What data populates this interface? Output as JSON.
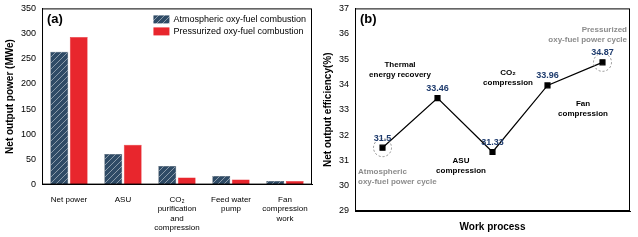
{
  "chart_data": [
    {
      "type": "bar",
      "title": "(a)",
      "y_label": "Net output power (MWe)",
      "categories": [
        "Net power",
        "ASU",
        "CO₂ purification and compression",
        "Feed water pump",
        "Fan compression work"
      ],
      "series": [
        {
          "name": "Atmospheric oxy-fuel combustion",
          "color": "#2f4b66",
          "values": [
            264,
            61,
            37,
            17,
            7
          ]
        },
        {
          "name": "Pressurized oxy-fuel combustion",
          "color": "#e8262d",
          "values": [
            293,
            79,
            14,
            10,
            7
          ]
        }
      ],
      "ylim": [
        0,
        350
      ],
      "yticks": [
        0,
        50,
        100,
        150,
        200,
        250,
        300,
        350
      ],
      "grid": false,
      "legend": "upper right"
    },
    {
      "type": "line",
      "title": "(b)",
      "x_label": "Work process",
      "y_label": "Net output efficiency(%)",
      "categories": [
        null,
        null,
        null,
        null,
        null
      ],
      "series": [
        {
          "color": "#000000",
          "marker": "square",
          "values": [
            31.5,
            33.46,
            31.33,
            33.96,
            34.87
          ]
        }
      ],
      "ylim": [
        29,
        37
      ],
      "yticks": [
        29,
        30,
        31,
        32,
        33,
        34,
        35,
        36,
        37
      ],
      "grid": false,
      "data_labels": true,
      "tick_labels": "y",
      "annotations": [
        "Atmospheric oxy-fuel power cycle",
        "Thermal energy recovery",
        "ASU compression",
        "CO₂ compression",
        "Fan compression",
        "Pressurized oxy-fuel power cycle"
      ]
    }
  ]
}
